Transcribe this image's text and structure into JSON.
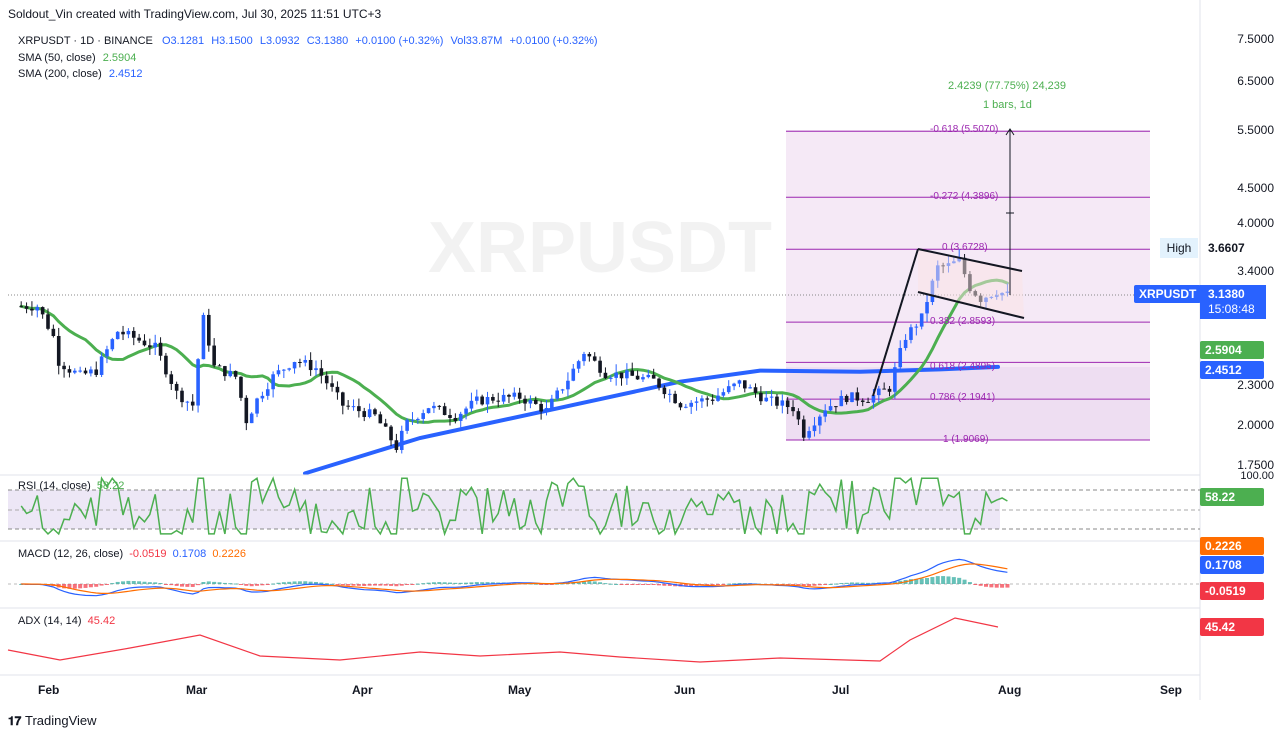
{
  "header": {
    "credit": "Soldout_Vin created with TradingView.com, Jul 30, 2025 11:51 UTC+3"
  },
  "legend": {
    "symbol": "XRPUSDT · 1D · BINANCE",
    "o": "O3.1281",
    "h": "H3.1500",
    "l": "L3.0932",
    "c": "C3.1380",
    "chg": "+0.0100 (+0.32%)",
    "vol": "Vol33.87M",
    "volchg": "+0.0100 (+0.32%)",
    "sma50_label": "SMA (50, close)",
    "sma50_val": "2.5904",
    "sma200_label": "SMA (200, close)",
    "sma200_val": "2.4512"
  },
  "watermark": "XRPUSDT",
  "price_axis": [
    "7.5000",
    "6.5000",
    "5.5000",
    "4.5000",
    "4.0000",
    "3.4000",
    "2.3000",
    "2.0000",
    "1.7500"
  ],
  "tags": {
    "high_label": "High",
    "high_value": "3.6607",
    "symbol_label": "XRPUSDT",
    "price": "3.1380",
    "countdown": "15:08:48",
    "sma50": "2.5904",
    "sma200": "2.4512"
  },
  "fib": [
    {
      "label": "-0.618 (5.5070)"
    },
    {
      "label": "-0.272 (4.3896)"
    },
    {
      "label": "0 (3.6728)"
    },
    {
      "label": "0.382 (2.8593)"
    },
    {
      "label": "0.618 (2.4895)"
    },
    {
      "label": "0.786 (2.1941)"
    },
    {
      "label": "1 (1.9069)"
    }
  ],
  "measure": {
    "line1": "2.4239 (77.75%) 24,239",
    "line2": "1 bars, 1d"
  },
  "rsi": {
    "label": "RSI (14, close)",
    "value": "58.22",
    "scale_top": "100.00"
  },
  "macd": {
    "label": "MACD (12, 26, close)",
    "v1": "-0.0519",
    "v2": "0.1708",
    "v3": "0.2226"
  },
  "adx": {
    "label": "ADX (14, 14)",
    "value": "45.42"
  },
  "x_axis": [
    "Feb",
    "Mar",
    "Apr",
    "May",
    "Jun",
    "Jul",
    "Aug",
    "Sep"
  ],
  "footer": {
    "brand": "TradingView"
  },
  "colors": {
    "up": "#2962ff",
    "down": "#131722",
    "sma50": "#4caf50",
    "sma200": "#2962ff",
    "fib_zone": "#f3e5f5",
    "rsi": "#4caf50",
    "adx": "#f23645"
  },
  "chart_data": {
    "type": "candlestick",
    "symbol": "XRPUSDT",
    "interval": "1D",
    "ohlc_last": {
      "open": 3.1281,
      "high": 3.15,
      "low": 3.0932,
      "close": 3.138
    },
    "y_ticks": [
      1.75,
      2.0,
      2.3,
      3.4,
      4.0,
      4.5,
      5.5,
      6.5,
      7.5
    ],
    "x_ticks": [
      "Feb",
      "Mar",
      "Apr",
      "May",
      "Jun",
      "Jul",
      "Aug",
      "Sep"
    ],
    "series": [
      {
        "name": "SMA (50, close)",
        "last": 2.5904
      },
      {
        "name": "SMA (200, close)",
        "last": 2.4512
      }
    ],
    "fib_levels": [
      {
        "ratio": -0.618,
        "price": 5.507
      },
      {
        "ratio": -0.272,
        "price": 4.3896
      },
      {
        "ratio": 0,
        "price": 3.6728
      },
      {
        "ratio": 0.382,
        "price": 2.8593
      },
      {
        "ratio": 0.618,
        "price": 2.4895
      },
      {
        "ratio": 0.786,
        "price": 2.1941
      },
      {
        "ratio": 1,
        "price": 1.9069
      }
    ],
    "close_path": [
      [
        "2025-01-27",
        3.02
      ],
      [
        "2025-01-30",
        3.02
      ],
      [
        "2025-02-02",
        2.72
      ],
      [
        "2025-02-03",
        2.5
      ],
      [
        "2025-02-05",
        2.43
      ],
      [
        "2025-02-07",
        2.38
      ],
      [
        "2025-02-10",
        2.42
      ],
      [
        "2025-02-14",
        2.77
      ],
      [
        "2025-02-17",
        2.71
      ],
      [
        "2025-02-21",
        2.62
      ],
      [
        "2025-02-25",
        2.24
      ],
      [
        "2025-02-28",
        2.15
      ],
      [
        "2025-03-02",
        2.89
      ],
      [
        "2025-03-04",
        2.45
      ],
      [
        "2025-03-08",
        2.37
      ],
      [
        "2025-03-10",
        2.04
      ],
      [
        "2025-03-12",
        2.19
      ],
      [
        "2025-03-15",
        2.37
      ],
      [
        "2025-03-19",
        2.51
      ],
      [
        "2025-03-23",
        2.44
      ],
      [
        "2025-03-28",
        2.15
      ],
      [
        "2025-04-03",
        2.07
      ],
      [
        "2025-04-07",
        1.86
      ],
      [
        "2025-04-09",
        2.02
      ],
      [
        "2025-04-13",
        2.14
      ],
      [
        "2025-04-18",
        2.07
      ],
      [
        "2025-04-22",
        2.18
      ],
      [
        "2025-04-25",
        2.2
      ],
      [
        "2025-04-30",
        2.21
      ],
      [
        "2025-05-05",
        2.11
      ],
      [
        "2025-05-09",
        2.35
      ],
      [
        "2025-05-12",
        2.58
      ],
      [
        "2025-05-16",
        2.4
      ],
      [
        "2025-05-20",
        2.38
      ],
      [
        "2025-05-25",
        2.34
      ],
      [
        "2025-05-30",
        2.16
      ],
      [
        "2025-06-05",
        2.2
      ],
      [
        "2025-06-10",
        2.32
      ],
      [
        "2025-06-15",
        2.19
      ],
      [
        "2025-06-20",
        2.13
      ],
      [
        "2025-06-22",
        1.95
      ],
      [
        "2025-06-26",
        2.13
      ],
      [
        "2025-06-30",
        2.21
      ],
      [
        "2025-07-04",
        2.2
      ],
      [
        "2025-07-08",
        2.28
      ],
      [
        "2025-07-11",
        2.72
      ],
      [
        "2025-07-14",
        2.9
      ],
      [
        "2025-07-17",
        3.45
      ],
      [
        "2025-07-19",
        3.47
      ],
      [
        "2025-07-21",
        3.53
      ],
      [
        "2025-07-23",
        3.22
      ],
      [
        "2025-07-25",
        3.1
      ],
      [
        "2025-07-28",
        3.18
      ],
      [
        "2025-07-30",
        3.138
      ]
    ]
  }
}
